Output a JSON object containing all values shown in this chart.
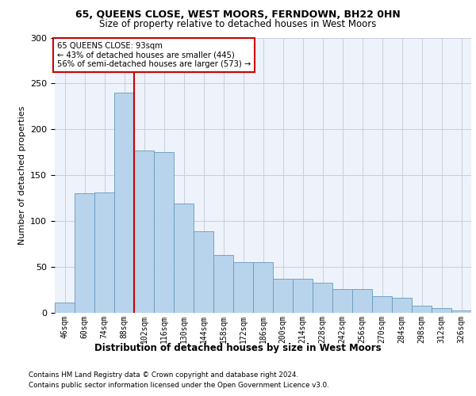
{
  "title1": "65, QUEENS CLOSE, WEST MOORS, FERNDOWN, BH22 0HN",
  "title2": "Size of property relative to detached houses in West Moors",
  "xlabel": "Distribution of detached houses by size in West Moors",
  "ylabel": "Number of detached properties",
  "footnote1": "Contains HM Land Registry data © Crown copyright and database right 2024.",
  "footnote2": "Contains public sector information licensed under the Open Government Licence v3.0.",
  "annotation_title": "65 QUEENS CLOSE: 93sqm",
  "annotation_line1": "← 43% of detached houses are smaller (445)",
  "annotation_line2": "56% of semi-detached houses are larger (573) →",
  "bar_categories": [
    "46sqm",
    "60sqm",
    "74sqm",
    "88sqm",
    "102sqm",
    "116sqm",
    "130sqm",
    "144sqm",
    "158sqm",
    "172sqm",
    "186sqm",
    "200sqm",
    "214sqm",
    "228sqm",
    "242sqm",
    "256sqm",
    "270sqm",
    "284sqm",
    "298sqm",
    "312sqm",
    "326sqm"
  ],
  "bar_values": [
    11,
    130,
    131,
    240,
    177,
    175,
    119,
    89,
    63,
    55,
    55,
    37,
    37,
    33,
    26,
    26,
    18,
    16,
    8,
    5,
    3
  ],
  "bar_color": "#b8d4ec",
  "bar_edge_color": "#6699bb",
  "vline_color": "#cc0000",
  "vline_x": 3.5,
  "annotation_box_color": "#ffffff",
  "annotation_box_edge": "#cc0000",
  "ylim": [
    0,
    300
  ],
  "yticks": [
    0,
    50,
    100,
    150,
    200,
    250,
    300
  ],
  "background_color": "#eef2fa",
  "grid_color": "#c8cede",
  "fig_width": 6.0,
  "fig_height": 5.0,
  "dpi": 100
}
